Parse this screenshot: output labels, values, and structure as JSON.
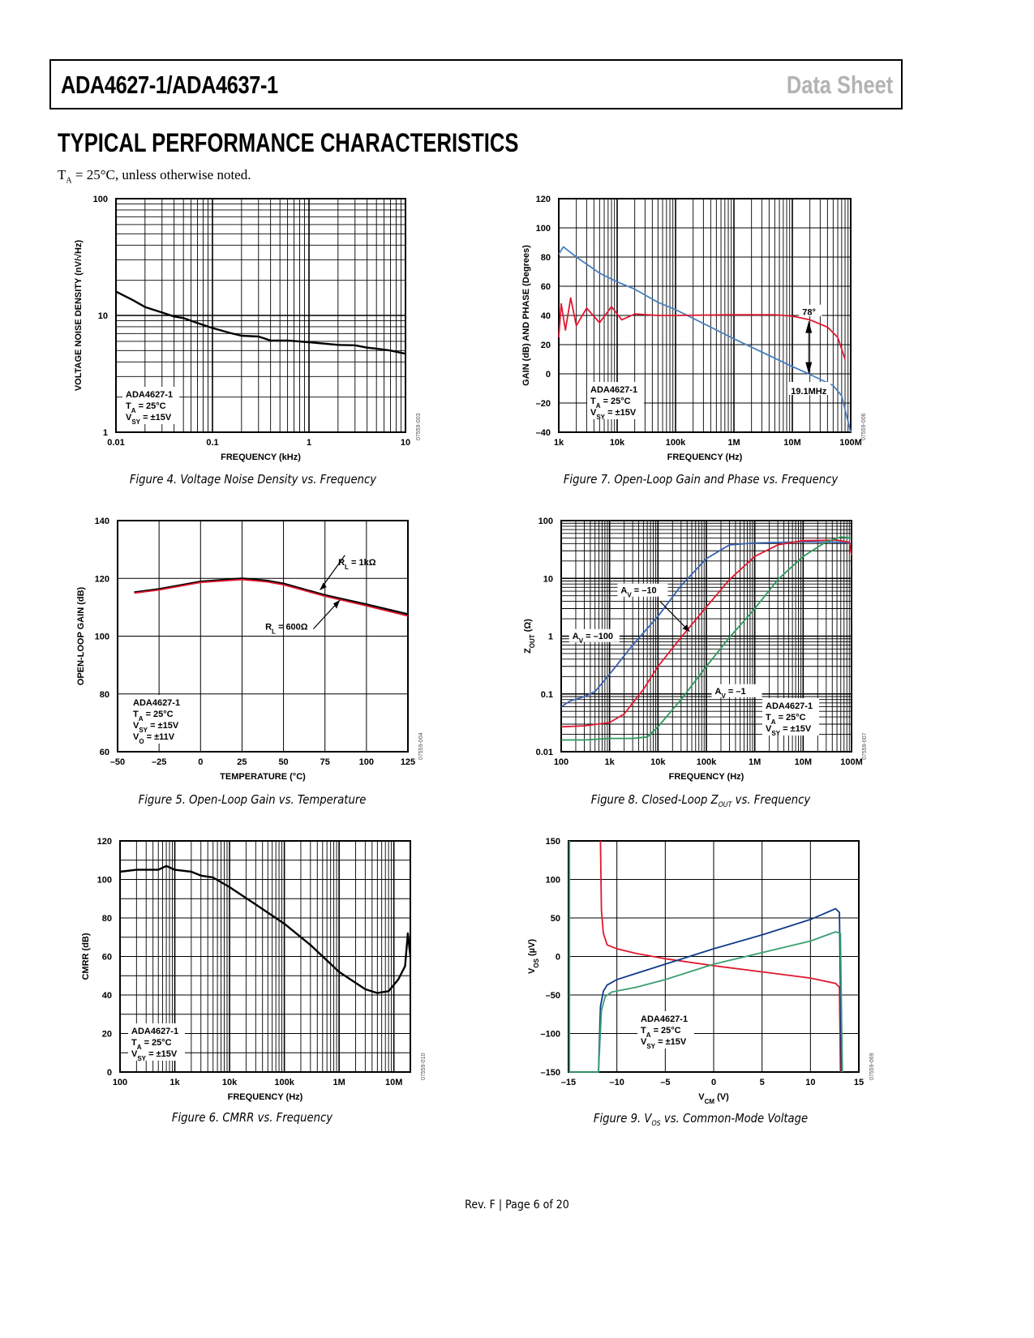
{
  "header": {
    "title": "ADA4627-1/ADA4637-1",
    "doc_type": "Data Sheet"
  },
  "section_title": "TYPICAL PERFORMANCE CHARACTERISTICS",
  "conditions": {
    "prefix": "T",
    "sub": "A",
    "rest": " = 25°C, unless otherwise noted."
  },
  "footer": "Rev. F | Page 6 of 20",
  "chart_data": [
    {
      "id": "fig4",
      "type": "line",
      "xscale": "log",
      "yscale": "log",
      "caption": "Figure 4. Voltage Noise Density vs. Frequency",
      "figure_id": "07559-003",
      "xlabel": "FREQUENCY (kHz)",
      "ylabel": "VOLTAGE NOISE DENSITY (nV/√Hz)",
      "xlim": [
        0.01,
        10
      ],
      "ylim": [
        1,
        100
      ],
      "xticks": [
        0.01,
        0.1,
        1,
        10
      ],
      "xtick_labels": [
        "0.01",
        "0.1",
        "1",
        "10"
      ],
      "yticks": [
        1,
        10,
        100
      ],
      "ytick_labels": [
        "1",
        "10",
        "100"
      ],
      "notes": [
        "ADA4627-1",
        "T_A = 25°C",
        "V_SY = ±15V"
      ],
      "series": [
        {
          "name": "ADA4627-1",
          "color": "#000000",
          "x": [
            0.01,
            0.015,
            0.02,
            0.03,
            0.04,
            0.05,
            0.07,
            0.1,
            0.15,
            0.2,
            0.3,
            0.4,
            0.6,
            1,
            2,
            3,
            4,
            5,
            7,
            10
          ],
          "y": [
            16,
            13.5,
            11.8,
            10.6,
            9.8,
            9.5,
            8.6,
            7.8,
            7.1,
            6.7,
            6.6,
            6.1,
            6.1,
            5.9,
            5.6,
            5.55,
            5.3,
            5.2,
            5.0,
            4.7
          ]
        }
      ]
    },
    {
      "id": "fig7",
      "type": "line",
      "xscale": "log",
      "yscale": "linear",
      "caption": "Figure 7. Open-Loop Gain and Phase vs. Frequency",
      "figure_id": "07559-006",
      "xlabel": "FREQUENCY (Hz)",
      "ylabel": "GAIN (dB) AND PHASE (Degrees)",
      "xlim": [
        1000,
        100000000
      ],
      "ylim": [
        -40,
        120
      ],
      "xticks": [
        1000,
        10000,
        100000,
        1000000,
        10000000,
        100000000
      ],
      "xtick_labels": [
        "1k",
        "10k",
        "100k",
        "1M",
        "10M",
        "100M"
      ],
      "yticks": [
        -40,
        -20,
        0,
        20,
        40,
        60,
        80,
        100,
        120
      ],
      "ytick_labels": [
        "–40",
        "–20",
        "0",
        "20",
        "40",
        "60",
        "80",
        "100",
        "120"
      ],
      "notes": [
        "ADA4627-1",
        "T_A = 25°C",
        "V_SY = ±15V"
      ],
      "annotations": [
        "78°",
        "19.1MHz"
      ],
      "series": [
        {
          "name": "Gain",
          "color": "#4a7fc1",
          "x": [
            1000,
            1200,
            2000,
            5000,
            10000,
            20000,
            50000,
            100000,
            200000,
            1000000,
            10000000,
            19100000,
            50000000,
            70000000,
            100000000
          ],
          "y": [
            82,
            87,
            80,
            69,
            63,
            58,
            49,
            44,
            38,
            24,
            5,
            0,
            -8,
            -15,
            -40
          ]
        },
        {
          "name": "Phase",
          "color": "#e0182f",
          "x": [
            1000,
            1100,
            1300,
            1600,
            2000,
            3000,
            5000,
            8000,
            12000,
            20000,
            50000,
            100000,
            1000000,
            5000000,
            10000000,
            20000000,
            40000000,
            60000000,
            80000000
          ],
          "y": [
            25,
            48,
            30,
            52,
            33,
            45,
            35,
            46,
            37,
            41,
            40,
            40,
            40.5,
            40.5,
            39.5,
            37,
            32,
            25,
            10
          ]
        }
      ]
    },
    {
      "id": "fig5",
      "type": "line",
      "xscale": "linear",
      "yscale": "linear",
      "caption": "Figure 5. Open-Loop Gain vs. Temperature",
      "figure_id": "07559-004",
      "xlabel": "TEMPERATURE (°C)",
      "ylabel": "OPEN-LOOP GAIN (dB)",
      "xlim": [
        -50,
        125
      ],
      "ylim": [
        60,
        140
      ],
      "xticks": [
        -50,
        -25,
        0,
        25,
        50,
        75,
        100,
        125
      ],
      "xtick_labels": [
        "–50",
        "–25",
        "0",
        "25",
        "50",
        "75",
        "100",
        "125"
      ],
      "yticks": [
        60,
        80,
        100,
        120,
        140
      ],
      "ytick_labels": [
        "60",
        "80",
        "100",
        "120",
        "140"
      ],
      "notes": [
        "ADA4627-1",
        "T_A = 25°C",
        "V_SY = ±15V",
        "V_O = ±11V"
      ],
      "annotations": [
        "R_L = 1kΩ",
        "R_L = 600Ω"
      ],
      "series": [
        {
          "name": "R_L = 1kΩ",
          "color": "#000000",
          "x": [
            -40,
            -25,
            0,
            25,
            40,
            50,
            75,
            100,
            125
          ],
          "y": [
            115.2,
            116.3,
            118.9,
            120.0,
            119.2,
            118.2,
            114.2,
            111.0,
            107.6
          ]
        },
        {
          "name": "R_L = 600Ω",
          "color": "#e0182f",
          "x": [
            -40,
            -25,
            0,
            25,
            40,
            50,
            75,
            100,
            125
          ],
          "y": [
            114.9,
            116.0,
            118.6,
            119.6,
            118.8,
            117.8,
            113.8,
            110.5,
            107.0
          ]
        }
      ]
    },
    {
      "id": "fig8",
      "type": "line",
      "xscale": "log",
      "yscale": "log",
      "caption_parts": {
        "pre": "Figure 8. Closed-Loop Z",
        "sub": "OUT",
        "post": " vs. Frequency"
      },
      "figure_id": "07559-007",
      "xlabel": "FREQUENCY (Hz)",
      "ylabel": "Z_OUT (Ω)",
      "xlim": [
        100,
        100000000
      ],
      "ylim": [
        0.01,
        100
      ],
      "xticks": [
        100,
        1000,
        10000,
        100000,
        1000000,
        10000000,
        100000000
      ],
      "xtick_labels": [
        "100",
        "1k",
        "10k",
        "100k",
        "1M",
        "10M",
        "100M"
      ],
      "yticks": [
        0.01,
        0.1,
        1,
        10,
        100
      ],
      "ytick_labels": [
        "0.01",
        "0.1",
        "1",
        "10",
        "100"
      ],
      "notes": [
        "ADA4627-1",
        "T_A = 25°C",
        "V_SY = ±15V"
      ],
      "annotations": [
        "A_V = –10",
        "A_V = –100",
        "A_V = –1"
      ],
      "series": [
        {
          "name": "A_V = –100",
          "color": "#3a62b0",
          "x": [
            100,
            150,
            300,
            500,
            1000,
            3000,
            10000,
            30000,
            100000,
            300000,
            1000000,
            10000000,
            70000000,
            100000000
          ],
          "y": [
            0.06,
            0.075,
            0.09,
            0.11,
            0.22,
            0.7,
            2.2,
            7.5,
            22,
            38,
            41,
            43,
            42,
            40
          ]
        },
        {
          "name": "A_V = –10",
          "color": "#e0182f",
          "x": [
            100,
            300,
            1000,
            2000,
            5000,
            10000,
            30000,
            100000,
            300000,
            1000000,
            3000000,
            10000000,
            50000000,
            90000000,
            100000000
          ],
          "y": [
            0.027,
            0.028,
            0.032,
            0.045,
            0.12,
            0.3,
            0.95,
            3.2,
            9.5,
            24,
            38,
            45,
            46,
            42,
            25
          ]
        },
        {
          "name": "A_V = –1",
          "color": "#2e9a5e",
          "x": [
            100,
            300,
            1000,
            3000,
            6000,
            10000,
            30000,
            100000,
            300000,
            1000000,
            3000000,
            10000000,
            30000000,
            60000000,
            100000000
          ],
          "y": [
            0.016,
            0.016,
            0.017,
            0.017,
            0.018,
            0.027,
            0.08,
            0.3,
            0.95,
            3.0,
            9.5,
            24,
            43,
            52,
            50
          ]
        }
      ]
    },
    {
      "id": "fig6",
      "type": "line",
      "xscale": "log",
      "yscale": "linear",
      "caption": "Figure 6. CMRR vs. Frequency",
      "figure_id": "07559-010",
      "xlabel": "FREQUENCY (Hz)",
      "ylabel": "CMRR (dB)",
      "xlim": [
        100,
        20000000
      ],
      "ylim": [
        0,
        120
      ],
      "xticks": [
        100,
        1000,
        10000,
        100000,
        1000000,
        10000000
      ],
      "xtick_labels": [
        "100",
        "1k",
        "10k",
        "100k",
        "1M",
        "10M"
      ],
      "yticks": [
        0,
        20,
        40,
        60,
        80,
        100,
        120
      ],
      "ytick_labels": [
        "0",
        "20",
        "40",
        "60",
        "80",
        "100",
        "120"
      ],
      "notes": [
        "ADA4627-1",
        "T_A = 25°C",
        "V_SY = ±15V"
      ],
      "series": [
        {
          "name": "CMRR",
          "color": "#000000",
          "x": [
            100,
            200,
            500,
            700,
            1000,
            2000,
            3000,
            5000,
            10000,
            30000,
            100000,
            300000,
            1000000,
            3000000,
            5000000,
            8000000,
            12000000,
            16000000,
            18000000,
            20000000
          ],
          "y": [
            104,
            105,
            105,
            107,
            105,
            104,
            102,
            101,
            96,
            87,
            77,
            66,
            52,
            43,
            41,
            42,
            48,
            55,
            72,
            60
          ]
        }
      ]
    },
    {
      "id": "fig9",
      "type": "line",
      "xscale": "linear",
      "yscale": "linear",
      "caption_parts": {
        "pre": "Figure 9. V",
        "sub": "OS",
        "post": " vs. Common-Mode Voltage"
      },
      "figure_id": "07559-069",
      "xlabel": "V_CM (V)",
      "ylabel": "V_OS (µV)",
      "xlim": [
        -15,
        15
      ],
      "ylim": [
        -150,
        150
      ],
      "xticks": [
        -15,
        -10,
        -5,
        0,
        5,
        10,
        15
      ],
      "xtick_labels": [
        "–15",
        "–10",
        "–5",
        "0",
        "5",
        "10",
        "15"
      ],
      "yticks": [
        -150,
        -100,
        -50,
        0,
        50,
        100,
        150
      ],
      "ytick_labels": [
        "–150",
        "–100",
        "–50",
        "0",
        "50",
        "100",
        "150"
      ],
      "notes": [
        "ADA4627-1",
        "T_A = 25°C",
        "V_SY = ±15V"
      ],
      "series": [
        {
          "name": "Red",
          "color": "#e0182f",
          "x": [
            -11.7,
            -11.6,
            -11.4,
            -11.0,
            -10.0,
            -8.0,
            -5.0,
            0,
            5,
            10,
            12.6,
            13.0,
            13.1
          ],
          "y": [
            150,
            60,
            30,
            15,
            10,
            4,
            -3,
            -12,
            -20,
            -28,
            -35,
            -40,
            -150
          ]
        },
        {
          "name": "Blue",
          "color": "#103b8c",
          "x": [
            -11.9,
            -11.7,
            -11.4,
            -11.0,
            -10.0,
            -8.0,
            -5.0,
            0,
            5,
            10,
            12.6,
            13.0,
            13.2
          ],
          "y": [
            -150,
            -65,
            -45,
            -37,
            -30,
            -22,
            -10,
            10,
            28,
            48,
            62,
            57,
            -150
          ]
        },
        {
          "name": "Green",
          "color": "#3aa070",
          "x": [
            -14.9,
            -14.9,
            -11.9,
            -11.6,
            -11.2,
            -10.5,
            -8.0,
            -5.0,
            0,
            5,
            10,
            12.6,
            13.1,
            13.3
          ],
          "y": [
            150,
            -150,
            -150,
            -70,
            -52,
            -46,
            -40,
            -30,
            -10,
            5,
            20,
            32,
            30,
            -150
          ]
        }
      ]
    }
  ]
}
